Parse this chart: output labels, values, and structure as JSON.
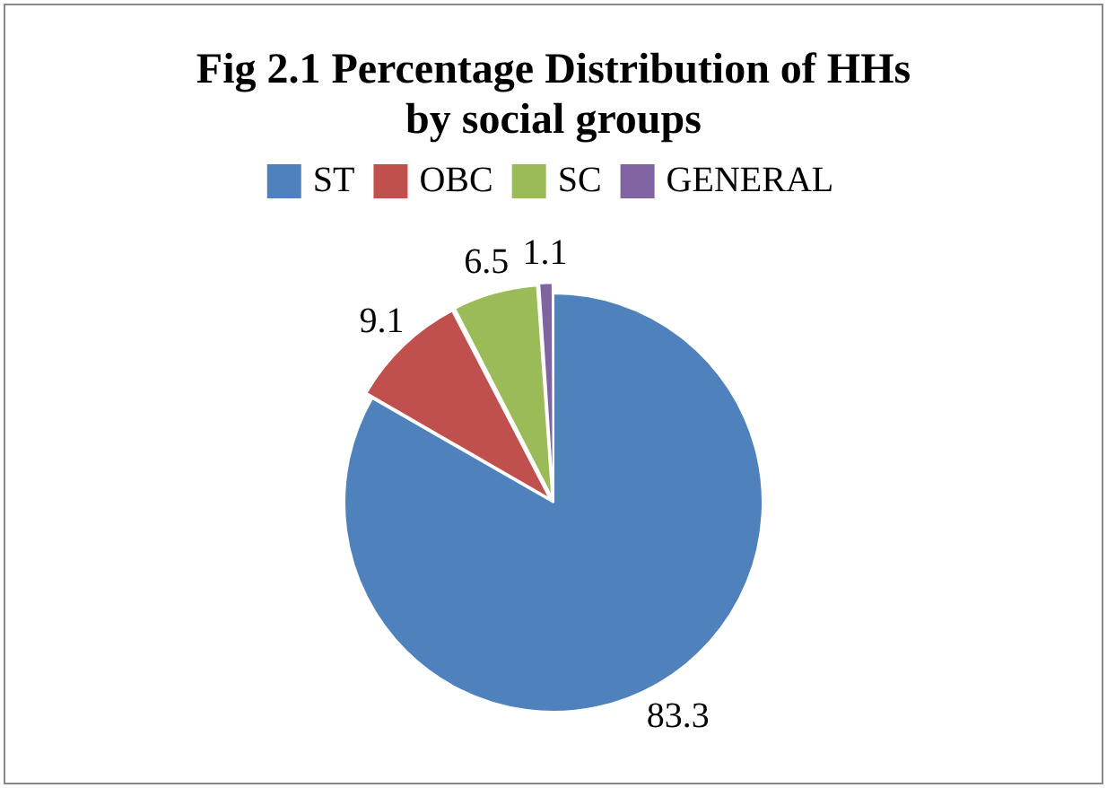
{
  "chart_data": {
    "type": "pie",
    "title": "Fig 2.1 Percentage Distribution of HHs  by social groups",
    "categories": [
      "ST",
      "OBC",
      "SC",
      "GENERAL"
    ],
    "values": [
      83.3,
      9.1,
      6.5,
      1.1
    ],
    "colors": [
      "#4f81bd",
      "#c0504d",
      "#9bbb59",
      "#8064a2"
    ],
    "legend": "top",
    "data_labels": true
  }
}
